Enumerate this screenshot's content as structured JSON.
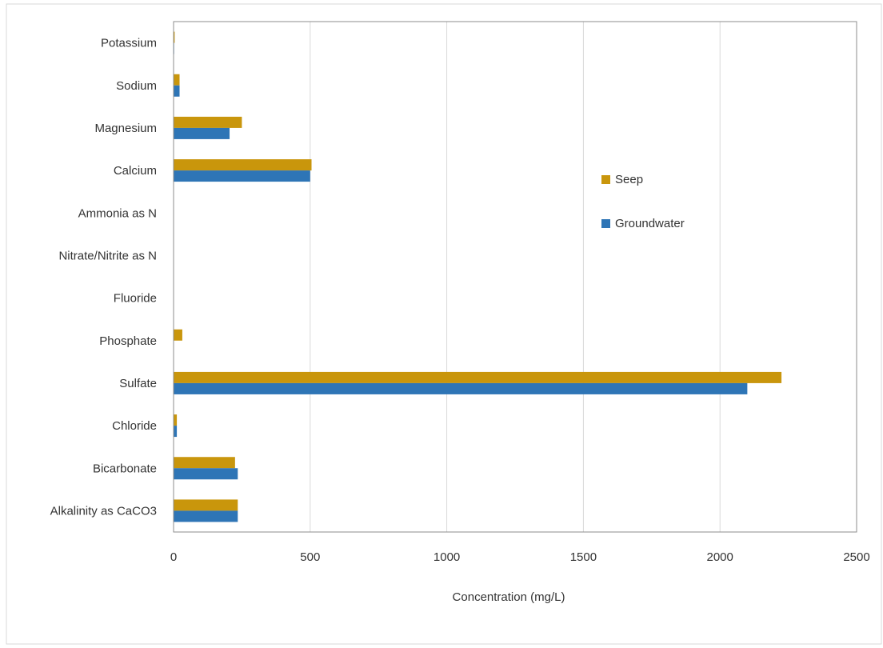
{
  "chart_data": {
    "type": "bar",
    "orientation": "horizontal",
    "categories": [
      "Potassium",
      "Sodium",
      "Magnesium",
      "Calcium",
      "Ammonia as N",
      "Nitrate/Nitrite as N",
      "Fluoride",
      "Phosphate",
      "Sulfate",
      "Chloride",
      "Bicarbonate",
      "Alkalinity as CaCO3"
    ],
    "series": [
      {
        "name": "Seep",
        "color": "#C9960C",
        "values": [
          4,
          22,
          250,
          505,
          0,
          0,
          1,
          32,
          2225,
          12,
          225,
          235
        ]
      },
      {
        "name": "Groundwater",
        "color": "#2E75B6",
        "values": [
          2,
          22,
          205,
          500,
          0,
          0,
          1,
          0,
          2100,
          12,
          235,
          235
        ]
      }
    ],
    "x_ticks": [
      "0",
      "500",
      "1000",
      "1500",
      "2000",
      "2500"
    ],
    "xlim": [
      0,
      2500
    ],
    "xlabel": "Concentration (mg/L)",
    "grid": "vertical",
    "legend_position": "right"
  }
}
